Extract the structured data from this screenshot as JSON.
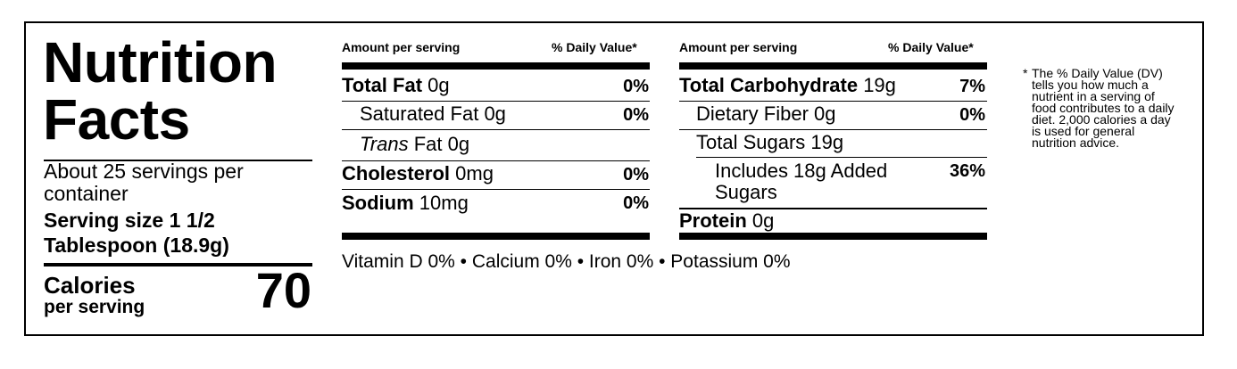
{
  "title_line1": "Nutrition",
  "title_line2": "Facts",
  "servings_per_container": "About 25 servings per container",
  "serving_size": "Serving size 1 1/2 Tablespoon (18.9g)",
  "calories": {
    "label": "Calories",
    "sublabel": "per serving",
    "value": "70"
  },
  "left_table": {
    "header_amount": "Amount per serving",
    "header_dv": "% Daily Value*",
    "rows": [
      {
        "name": "Total Fat",
        "amount": "0g",
        "dv": "0%"
      },
      {
        "name": "Saturated Fat",
        "amount": "0g",
        "dv": "0%"
      },
      {
        "name_italic": "Trans",
        "name": "Fat",
        "amount": "0g",
        "dv": ""
      },
      {
        "name": "Cholesterol",
        "amount": "0mg",
        "dv": "0%"
      },
      {
        "name": "Sodium",
        "amount": "10mg",
        "dv": "0%"
      }
    ]
  },
  "right_table": {
    "header_amount": "Amount per serving",
    "header_dv": "% Daily Value*",
    "rows": [
      {
        "name": "Total Carbohydrate",
        "amount": "19g",
        "dv": "7%"
      },
      {
        "name": "Dietary Fiber",
        "amount": "0g",
        "dv": "0%"
      },
      {
        "name": "Total Sugars",
        "amount": "19g",
        "dv": ""
      },
      {
        "line1": "Includes 18g Added",
        "line2": "Sugars",
        "dv": "36%"
      },
      {
        "name": "Protein",
        "amount": "0g",
        "dv": ""
      }
    ]
  },
  "micronutrients": "Vitamin D 0% • Calcium 0% • Iron 0% • Potassium 0%",
  "footnote": {
    "marker": "*",
    "text": "The % Daily Value (DV) tells you how much a nutrient in a serving of food contributes to a daily diet. 2,000 calories a day is used for general nutrition advice."
  }
}
